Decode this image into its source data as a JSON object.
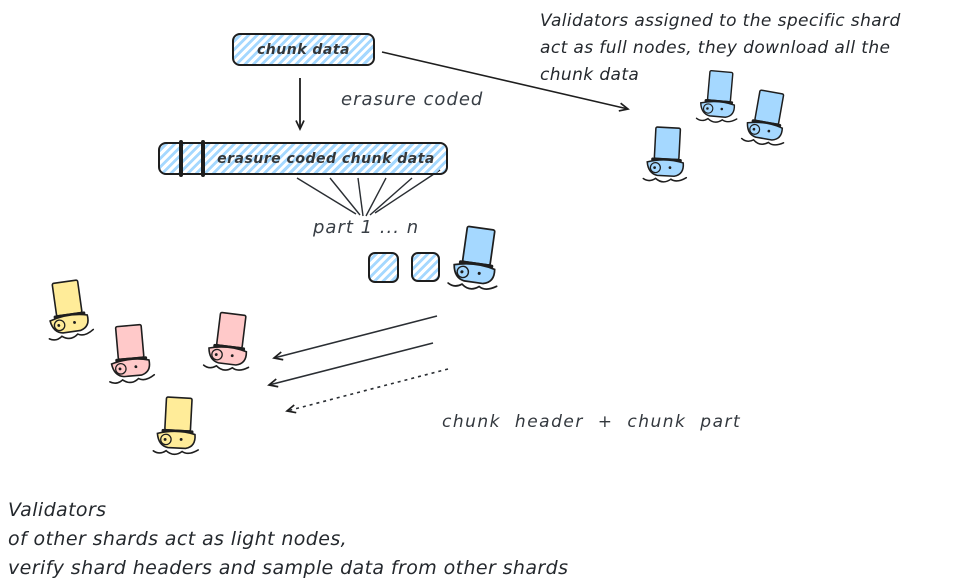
{
  "colors": {
    "stroke": "#1e1e1e",
    "blue": "#a5d8ff",
    "yellow": "#ffec99",
    "pink": "#ffc9c9",
    "background": "#ffffff"
  },
  "boxes": {
    "chunk_data": {
      "label": "chunk data"
    },
    "erasure_coded_chunk_data": {
      "label": "erasure coded chunk data"
    }
  },
  "labels": {
    "erasure_coded": "erasure coded",
    "part_range": "part 1 ... n",
    "chunk_header_part": "chunk header + chunk part"
  },
  "annotations": {
    "full_nodes": {
      "lines": [
        "Validators assigned to the specific shard",
        "act as full nodes, they download all the",
        "chunk data"
      ]
    },
    "light_nodes": {
      "lines": [
        "Validators",
        "of other shards act as light nodes,",
        "verify shard headers and sample data from other shards"
      ]
    }
  },
  "validators": {
    "shard_full_nodes": {
      "count": 4,
      "color_name": "blue"
    },
    "other_shard_light_nodes": {
      "count": 4,
      "color_names": [
        "yellow",
        "pink"
      ]
    },
    "boats": [
      "blue",
      "blue",
      "blue",
      "blue",
      "yellow",
      "pink",
      "pink",
      "yellow"
    ]
  }
}
